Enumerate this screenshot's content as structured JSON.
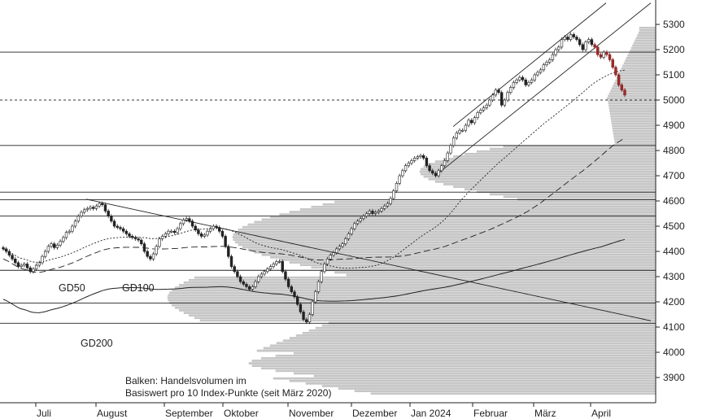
{
  "chart_data": {
    "type": "candlestick",
    "ylim": [
      3820,
      5360
    ],
    "y_ticks": [
      3900,
      4000,
      4100,
      4200,
      4300,
      4400,
      4500,
      4600,
      4700,
      4800,
      4900,
      5000,
      5100,
      5200,
      5300
    ],
    "x_months": [
      "Juli",
      "August",
      "September",
      "Oktober",
      "November",
      "Dezember",
      "Jan 2024",
      "Februar",
      "März",
      "April"
    ],
    "moving_average_labels": {
      "gd50": "GD50",
      "gd100": "GD100",
      "gd200": "GD200"
    },
    "note_lines": [
      "Balken: Handelsvolumen im",
      "Basiswert pro 10 Index-Punkte (seit März 2020)"
    ],
    "horizontal_levels": [
      5190,
      4820,
      4635,
      4605,
      4540,
      4325,
      4195,
      4115
    ],
    "dotted_level": 5000,
    "trend_lines": [
      {
        "style": "solid",
        "points": [
          [
            106,
            4607
          ],
          [
            800,
            4125
          ]
        ]
      },
      {
        "style": "solid",
        "points": [
          [
            557,
            4895
          ],
          [
            745,
            5385
          ]
        ]
      },
      {
        "style": "solid",
        "points": [
          [
            537,
            4705
          ],
          [
            800,
            5385
          ]
        ]
      }
    ],
    "candles": {
      "start_index": 0,
      "spacing": 3.5,
      "closes": [
        4410,
        4400,
        4385,
        4370,
        4355,
        4340,
        4345,
        4350,
        4335,
        4320,
        4330,
        4345,
        4355,
        4380,
        4400,
        4420,
        4430,
        4415,
        4425,
        4440,
        4455,
        4475,
        4480,
        4500,
        4520,
        4540,
        4555,
        4565,
        4570,
        4575,
        4570,
        4580,
        4590,
        4585,
        4560,
        4540,
        4520,
        4500,
        4495,
        4490,
        4480,
        4470,
        4460,
        4455,
        4450,
        4445,
        4430,
        4400,
        4380,
        4370,
        4390,
        4420,
        4450,
        4460,
        4470,
        4480,
        4480,
        4475,
        4490,
        4510,
        4525,
        4530,
        4520,
        4500,
        4485,
        4470,
        4460,
        4465,
        4480,
        4490,
        4500,
        4495,
        4480,
        4460,
        4420,
        4380,
        4340,
        4320,
        4300,
        4280,
        4270,
        4260,
        4250,
        4260,
        4280,
        4300,
        4310,
        4320,
        4330,
        4340,
        4350,
        4360,
        4360,
        4320,
        4290,
        4260,
        4240,
        4220,
        4190,
        4160,
        4130,
        4120,
        4150,
        4200,
        4240,
        4280,
        4320,
        4350,
        4370,
        4385,
        4395,
        4410,
        4420,
        4430,
        4450,
        4470,
        4490,
        4510,
        4520,
        4530,
        4540,
        4550,
        4560,
        4550,
        4555,
        4560,
        4570,
        4580,
        4590,
        4610,
        4640,
        4670,
        4700,
        4720,
        4740,
        4750,
        4760,
        4770,
        4775,
        4780,
        4770,
        4740,
        4720,
        4710,
        4700,
        4720,
        4740,
        4760,
        4790,
        4820,
        4850,
        4870,
        4880,
        4880,
        4900,
        4920,
        4910,
        4930,
        4950,
        4960,
        4970,
        4980,
        5000,
        5020,
        5040,
        5030,
        4980,
        5000,
        5030,
        5050,
        5070,
        5080,
        5090,
        5080,
        5060,
        5070,
        5080,
        5100,
        5110,
        5120,
        5140,
        5150,
        5160,
        5180,
        5200,
        5210,
        5240,
        5250,
        5240,
        5260,
        5250,
        5240,
        5220,
        5200,
        5230,
        5240,
        5220,
        5210,
        5180,
        5170,
        5190,
        5180,
        5160,
        5130,
        5100,
        5060,
        5040,
        5020
      ]
    },
    "volume_profile": {
      "bin_size_points": 10,
      "price_range": [
        3830,
        5280
      ],
      "peak_bars_description": "horizontal volume bars anchored on the right axis"
    }
  }
}
